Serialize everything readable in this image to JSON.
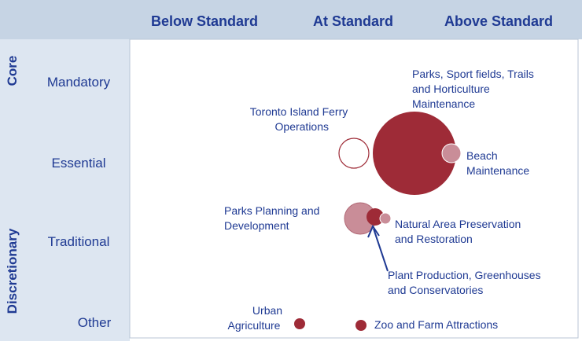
{
  "columns": [
    "Below Standard",
    "At Standard",
    "Above Standard"
  ],
  "rows": [
    "Mandatory",
    "Essential",
    "Traditional",
    "Other"
  ],
  "groups": [
    "Core",
    "Discretionary"
  ],
  "bubbles": [
    {
      "label": [
        "Toronto Island Ferry",
        "Operations"
      ]
    },
    {
      "label": [
        "Parks, Sport fields, Trails",
        "and Horticulture",
        "Maintenance"
      ]
    },
    {
      "label": [
        "Beach",
        "Maintenance"
      ]
    },
    {
      "label": [
        "Parks Planning and",
        "Development"
      ]
    },
    {
      "label": [
        "Natural Area Preservation",
        "and Restoration"
      ]
    },
    {
      "label": [
        "Plant Production, Greenhouses",
        "and Conservatories"
      ]
    },
    {
      "label": [
        "Urban",
        "Agriculture"
      ]
    },
    {
      "label": [
        "Zoo and Farm Attractions"
      ]
    }
  ]
}
